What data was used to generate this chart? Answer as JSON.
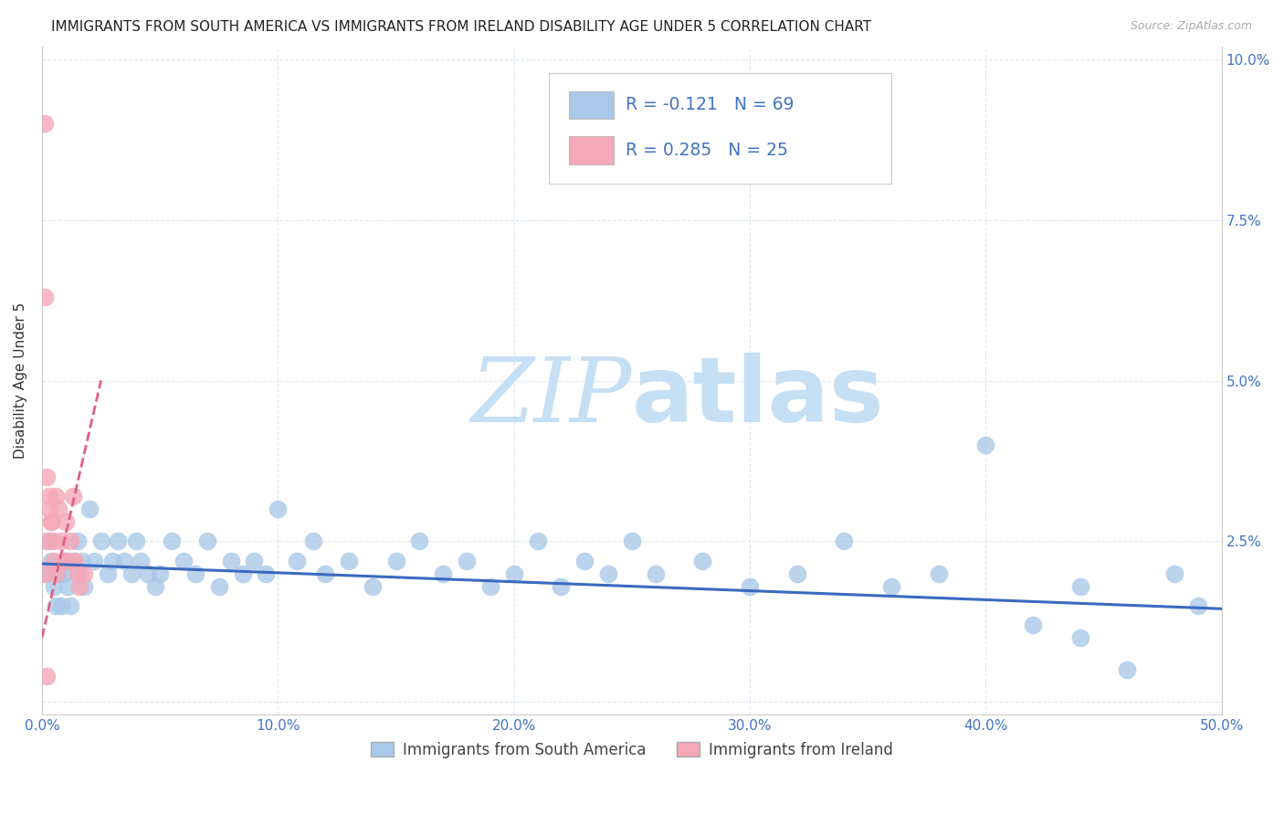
{
  "title": "IMMIGRANTS FROM SOUTH AMERICA VS IMMIGRANTS FROM IRELAND DISABILITY AGE UNDER 5 CORRELATION CHART",
  "source": "Source: ZipAtlas.com",
  "ylabel": "Disability Age Under 5",
  "legend_label_1": "Immigrants from South America",
  "legend_label_2": "Immigrants from Ireland",
  "R1": -0.121,
  "N1": 69,
  "R2": 0.285,
  "N2": 25,
  "color1": "#aac8e8",
  "color2": "#f4a8b8",
  "trendline1_color": "#3a6abf",
  "trendline2_color": "#e06080",
  "xlim": [
    0.0,
    0.5
  ],
  "ylim": [
    -0.002,
    0.102
  ],
  "xticks": [
    0.0,
    0.1,
    0.2,
    0.3,
    0.4,
    0.5
  ],
  "yticks": [
    0.0,
    0.025,
    0.05,
    0.075,
    0.1
  ],
  "xticklabels": [
    "0.0%",
    "10.0%",
    "20.0%",
    "30.0%",
    "40.0%",
    "50.0%"
  ],
  "yticklabels_right": [
    "",
    "2.5%",
    "5.0%",
    "7.5%",
    "10.0%"
  ],
  "blue_x": [
    0.001,
    0.003,
    0.004,
    0.005,
    0.006,
    0.007,
    0.008,
    0.009,
    0.01,
    0.011,
    0.012,
    0.013,
    0.015,
    0.016,
    0.017,
    0.018,
    0.02,
    0.022,
    0.025,
    0.028,
    0.03,
    0.032,
    0.035,
    0.038,
    0.04,
    0.042,
    0.045,
    0.048,
    0.05,
    0.055,
    0.06,
    0.065,
    0.07,
    0.075,
    0.08,
    0.085,
    0.09,
    0.095,
    0.1,
    0.108,
    0.115,
    0.12,
    0.13,
    0.14,
    0.15,
    0.16,
    0.17,
    0.18,
    0.19,
    0.2,
    0.21,
    0.22,
    0.23,
    0.24,
    0.25,
    0.26,
    0.28,
    0.3,
    0.32,
    0.34,
    0.36,
    0.38,
    0.4,
    0.42,
    0.44,
    0.46,
    0.48,
    0.49,
    0.44
  ],
  "blue_y": [
    0.02,
    0.025,
    0.022,
    0.018,
    0.015,
    0.02,
    0.015,
    0.02,
    0.022,
    0.018,
    0.015,
    0.022,
    0.025,
    0.02,
    0.022,
    0.018,
    0.03,
    0.022,
    0.025,
    0.02,
    0.022,
    0.025,
    0.022,
    0.02,
    0.025,
    0.022,
    0.02,
    0.018,
    0.02,
    0.025,
    0.022,
    0.02,
    0.025,
    0.018,
    0.022,
    0.02,
    0.022,
    0.02,
    0.03,
    0.022,
    0.025,
    0.02,
    0.022,
    0.018,
    0.022,
    0.025,
    0.02,
    0.022,
    0.018,
    0.02,
    0.025,
    0.018,
    0.022,
    0.02,
    0.025,
    0.02,
    0.022,
    0.018,
    0.02,
    0.025,
    0.018,
    0.02,
    0.04,
    0.012,
    0.018,
    0.005,
    0.02,
    0.015,
    0.01
  ],
  "pink_x": [
    0.001,
    0.001,
    0.002,
    0.003,
    0.004,
    0.005,
    0.006,
    0.007,
    0.008,
    0.009,
    0.01,
    0.011,
    0.012,
    0.013,
    0.014,
    0.015,
    0.016,
    0.018,
    0.001,
    0.002,
    0.003,
    0.004,
    0.005,
    0.006,
    0.002
  ],
  "pink_y": [
    0.09,
    0.063,
    0.035,
    0.03,
    0.028,
    0.025,
    0.032,
    0.03,
    0.025,
    0.022,
    0.028,
    0.022,
    0.025,
    0.032,
    0.022,
    0.02,
    0.018,
    0.02,
    0.02,
    0.025,
    0.032,
    0.028,
    0.022,
    0.02,
    0.004
  ],
  "blue_trend_x0": 0.0,
  "blue_trend_x1": 0.5,
  "blue_trend_y0": 0.0215,
  "blue_trend_y1": 0.0145,
  "pink_trend_x0": 0.0,
  "pink_trend_x1": 0.025,
  "pink_trend_y0": 0.01,
  "pink_trend_y1": 0.05,
  "watermark_zip": "ZIP",
  "watermark_atlas": "atlas",
  "watermark_color": "#c5dff5",
  "background_color": "#ffffff",
  "grid_color": "#dde8f0"
}
